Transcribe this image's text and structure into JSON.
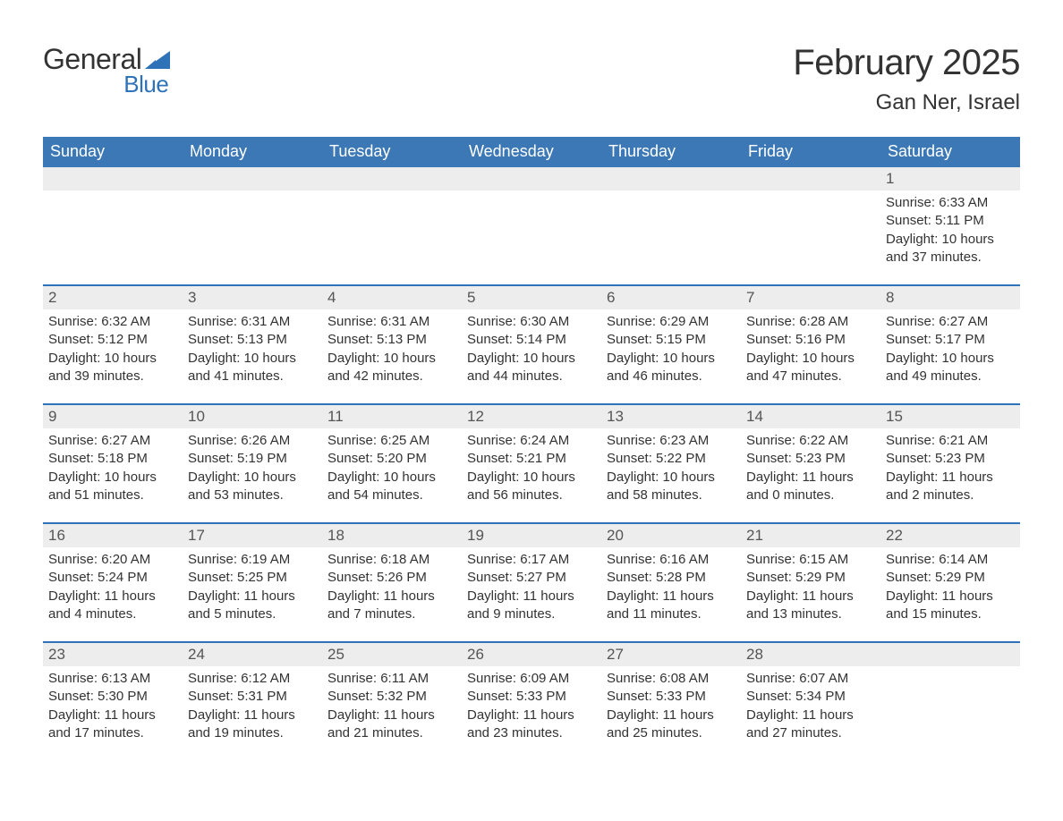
{
  "logo": {
    "text1": "General",
    "text2": "Blue",
    "accent_color": "#2e72b8"
  },
  "title": "February 2025",
  "location": "Gan Ner, Israel",
  "colors": {
    "header_bg": "#3b78b5",
    "row_border": "#2e72b8",
    "daynum_bg": "#ededed",
    "text": "#333333",
    "muted": "#555555",
    "bg": "#ffffff"
  },
  "fonts": {
    "day_header_pt": 18,
    "title_pt": 40,
    "location_pt": 24,
    "body_pt": 15
  },
  "days_of_week": [
    "Sunday",
    "Monday",
    "Tuesday",
    "Wednesday",
    "Thursday",
    "Friday",
    "Saturday"
  ],
  "weeks": [
    [
      null,
      null,
      null,
      null,
      null,
      null,
      {
        "n": "1",
        "sunrise": "6:33 AM",
        "sunset": "5:11 PM",
        "daylight": "10 hours and 37 minutes."
      }
    ],
    [
      {
        "n": "2",
        "sunrise": "6:32 AM",
        "sunset": "5:12 PM",
        "daylight": "10 hours and 39 minutes."
      },
      {
        "n": "3",
        "sunrise": "6:31 AM",
        "sunset": "5:13 PM",
        "daylight": "10 hours and 41 minutes."
      },
      {
        "n": "4",
        "sunrise": "6:31 AM",
        "sunset": "5:13 PM",
        "daylight": "10 hours and 42 minutes."
      },
      {
        "n": "5",
        "sunrise": "6:30 AM",
        "sunset": "5:14 PM",
        "daylight": "10 hours and 44 minutes."
      },
      {
        "n": "6",
        "sunrise": "6:29 AM",
        "sunset": "5:15 PM",
        "daylight": "10 hours and 46 minutes."
      },
      {
        "n": "7",
        "sunrise": "6:28 AM",
        "sunset": "5:16 PM",
        "daylight": "10 hours and 47 minutes."
      },
      {
        "n": "8",
        "sunrise": "6:27 AM",
        "sunset": "5:17 PM",
        "daylight": "10 hours and 49 minutes."
      }
    ],
    [
      {
        "n": "9",
        "sunrise": "6:27 AM",
        "sunset": "5:18 PM",
        "daylight": "10 hours and 51 minutes."
      },
      {
        "n": "10",
        "sunrise": "6:26 AM",
        "sunset": "5:19 PM",
        "daylight": "10 hours and 53 minutes."
      },
      {
        "n": "11",
        "sunrise": "6:25 AM",
        "sunset": "5:20 PM",
        "daylight": "10 hours and 54 minutes."
      },
      {
        "n": "12",
        "sunrise": "6:24 AM",
        "sunset": "5:21 PM",
        "daylight": "10 hours and 56 minutes."
      },
      {
        "n": "13",
        "sunrise": "6:23 AM",
        "sunset": "5:22 PM",
        "daylight": "10 hours and 58 minutes."
      },
      {
        "n": "14",
        "sunrise": "6:22 AM",
        "sunset": "5:23 PM",
        "daylight": "11 hours and 0 minutes."
      },
      {
        "n": "15",
        "sunrise": "6:21 AM",
        "sunset": "5:23 PM",
        "daylight": "11 hours and 2 minutes."
      }
    ],
    [
      {
        "n": "16",
        "sunrise": "6:20 AM",
        "sunset": "5:24 PM",
        "daylight": "11 hours and 4 minutes."
      },
      {
        "n": "17",
        "sunrise": "6:19 AM",
        "sunset": "5:25 PM",
        "daylight": "11 hours and 5 minutes."
      },
      {
        "n": "18",
        "sunrise": "6:18 AM",
        "sunset": "5:26 PM",
        "daylight": "11 hours and 7 minutes."
      },
      {
        "n": "19",
        "sunrise": "6:17 AM",
        "sunset": "5:27 PM",
        "daylight": "11 hours and 9 minutes."
      },
      {
        "n": "20",
        "sunrise": "6:16 AM",
        "sunset": "5:28 PM",
        "daylight": "11 hours and 11 minutes."
      },
      {
        "n": "21",
        "sunrise": "6:15 AM",
        "sunset": "5:29 PM",
        "daylight": "11 hours and 13 minutes."
      },
      {
        "n": "22",
        "sunrise": "6:14 AM",
        "sunset": "5:29 PM",
        "daylight": "11 hours and 15 minutes."
      }
    ],
    [
      {
        "n": "23",
        "sunrise": "6:13 AM",
        "sunset": "5:30 PM",
        "daylight": "11 hours and 17 minutes."
      },
      {
        "n": "24",
        "sunrise": "6:12 AM",
        "sunset": "5:31 PM",
        "daylight": "11 hours and 19 minutes."
      },
      {
        "n": "25",
        "sunrise": "6:11 AM",
        "sunset": "5:32 PM",
        "daylight": "11 hours and 21 minutes."
      },
      {
        "n": "26",
        "sunrise": "6:09 AM",
        "sunset": "5:33 PM",
        "daylight": "11 hours and 23 minutes."
      },
      {
        "n": "27",
        "sunrise": "6:08 AM",
        "sunset": "5:33 PM",
        "daylight": "11 hours and 25 minutes."
      },
      {
        "n": "28",
        "sunrise": "6:07 AM",
        "sunset": "5:34 PM",
        "daylight": "11 hours and 27 minutes."
      },
      null
    ]
  ],
  "labels": {
    "sunrise": "Sunrise: ",
    "sunset": "Sunset: ",
    "daylight": "Daylight: "
  }
}
